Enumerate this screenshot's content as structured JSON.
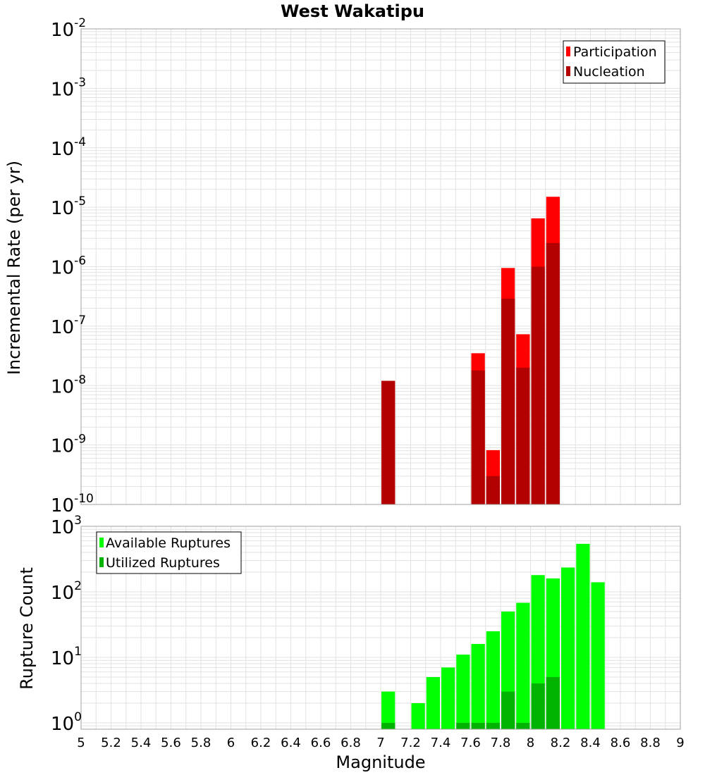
{
  "title": "West Wakatipu",
  "colors": {
    "participation": "#ff0000",
    "nucleation": "#b30000",
    "available": "#00ff00",
    "utilized": "#00b300",
    "grid": "#e2e2e2",
    "frame": "#a0a0a0"
  },
  "chart_data": [
    {
      "type": "bar",
      "panel": "top",
      "ylabel": "Incremental Rate (per yr)",
      "yscale": "log",
      "ylim": [
        1e-10,
        0.01
      ],
      "xlim": [
        5,
        9
      ],
      "bar_width": 0.1,
      "yticks": [
        {
          "base": "10",
          "exp": "-10",
          "value": 1e-10
        },
        {
          "base": "10",
          "exp": "-9",
          "value": 1e-09
        },
        {
          "base": "10",
          "exp": "-8",
          "value": 1e-08
        },
        {
          "base": "10",
          "exp": "-7",
          "value": 1e-07
        },
        {
          "base": "10",
          "exp": "-6",
          "value": 1e-06
        },
        {
          "base": "10",
          "exp": "-5",
          "value": 1e-05
        },
        {
          "base": "10",
          "exp": "-4",
          "value": 0.0001
        },
        {
          "base": "10",
          "exp": "-3",
          "value": 0.001
        },
        {
          "base": "10",
          "exp": "-2",
          "value": 0.01
        }
      ],
      "legend": {
        "position": "top-right",
        "entries": [
          "Participation",
          "Nucleation"
        ]
      },
      "series": [
        {
          "name": "Participation",
          "x": [
            7.05,
            7.65,
            7.75,
            7.85,
            7.95,
            8.05,
            8.15
          ],
          "values": [
            1.2e-08,
            3.5e-08,
            8.2e-10,
            9.5e-07,
            7.3e-08,
            6.5e-06,
            1.5e-05
          ]
        },
        {
          "name": "Nucleation",
          "x": [
            7.05,
            7.65,
            7.75,
            7.85,
            7.95,
            8.05,
            8.15
          ],
          "values": [
            1.2e-08,
            1.8e-08,
            3e-10,
            2.9e-07,
            2e-08,
            1e-06,
            2.5e-06
          ]
        }
      ]
    },
    {
      "type": "bar",
      "panel": "bottom",
      "ylabel": "Rupture Count",
      "xlabel": "Magnitude",
      "yscale": "log",
      "ylim": [
        0.8,
        1000
      ],
      "xlim": [
        5,
        9
      ],
      "bar_width": 0.1,
      "yticks": [
        {
          "base": "10",
          "exp": "0",
          "value": 1
        },
        {
          "base": "10",
          "exp": "1",
          "value": 10
        },
        {
          "base": "10",
          "exp": "2",
          "value": 100
        },
        {
          "base": "10",
          "exp": "3",
          "value": 1000
        }
      ],
      "xticks": [
        "5",
        "5.2",
        "5.4",
        "5.6",
        "5.8",
        "6",
        "6.2",
        "6.4",
        "6.6",
        "6.8",
        "7",
        "7.2",
        "7.4",
        "7.6",
        "7.8",
        "8",
        "8.2",
        "8.4",
        "8.6",
        "8.8",
        "9"
      ],
      "legend": {
        "position": "top-left",
        "entries": [
          "Available Ruptures",
          "Utilized Ruptures"
        ]
      },
      "series": [
        {
          "name": "Available Ruptures",
          "x": [
            7.05,
            7.25,
            7.35,
            7.45,
            7.55,
            7.65,
            7.75,
            7.85,
            7.95,
            8.05,
            8.15,
            8.25,
            8.35,
            8.45
          ],
          "values": [
            3,
            2,
            5,
            7,
            11,
            16,
            25,
            50,
            68,
            180,
            160,
            235,
            540,
            140
          ]
        },
        {
          "name": "Utilized Ruptures",
          "x": [
            7.05,
            7.55,
            7.65,
            7.75,
            7.85,
            7.95,
            8.05,
            8.15
          ],
          "values": [
            1,
            1,
            1,
            1,
            3,
            1,
            4,
            5
          ]
        }
      ]
    }
  ]
}
